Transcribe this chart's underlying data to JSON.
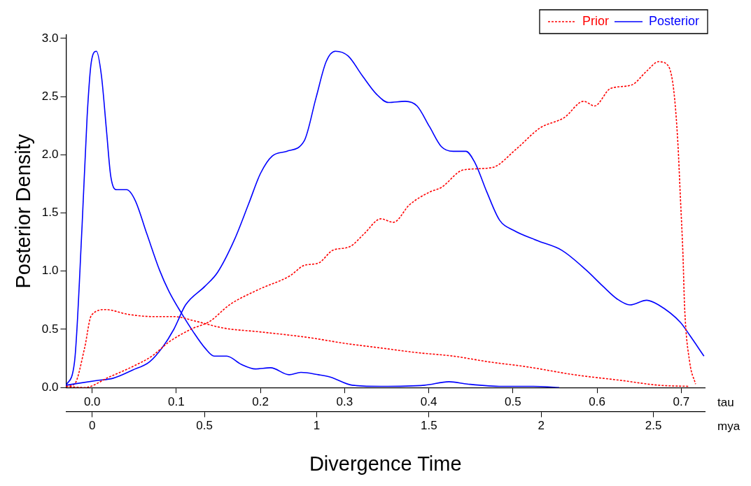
{
  "chart_data": {
    "type": "line",
    "ylabel": "Posterior Density",
    "xlabel": "tau",
    "x2label": "mya",
    "annotations": [
      "Divergence Time"
    ],
    "xlim": [
      -0.031,
      0.728
    ],
    "xticks": [
      {
        "value": 0,
        "label": "0.0"
      },
      0.1,
      0.2,
      0.3,
      0.4,
      0.5,
      0.6,
      0.7
    ],
    "x2lim": [
      -0.116,
      2.729
    ],
    "x2ticks": [
      0,
      0.5,
      1,
      1.5,
      2,
      2.5
    ],
    "ylim": [
      0,
      3.03
    ],
    "yticks": [
      {
        "value": 0,
        "label": "0.0"
      },
      {
        "value": 0.5,
        "label": "0.5"
      },
      {
        "value": 1,
        "label": "1.0"
      },
      {
        "value": 1.5,
        "label": "1.5"
      },
      {
        "value": 2,
        "label": "2.0"
      },
      {
        "value": 2.5,
        "label": "2.5"
      },
      {
        "value": 3,
        "label": "3.0"
      }
    ],
    "grid": false,
    "legend": "top right",
    "series": [
      {
        "name": "Prior",
        "color": "#ff0000",
        "line_style": "dashed",
        "x": [
          -0.031,
          -0.009,
          0.02,
          0.048,
          0.071,
          0.091,
          0.117,
          0.14,
          0.163,
          0.197,
          0.235,
          0.252,
          0.269,
          0.286,
          0.306,
          0.323,
          0.343,
          0.358,
          0.377,
          0.401,
          0.415,
          0.441,
          0.475,
          0.504,
          0.532,
          0.561,
          0.584,
          0.597,
          0.616,
          0.641,
          0.659,
          0.673,
          0.684,
          0.691,
          0.696,
          0.699,
          0.702,
          0.704,
          0.71,
          0.717
        ],
        "values": [
          0.01,
          0.0,
          0.09,
          0.18,
          0.27,
          0.39,
          0.5,
          0.57,
          0.71,
          0.84,
          0.96,
          1.05,
          1.07,
          1.18,
          1.21,
          1.32,
          1.45,
          1.42,
          1.57,
          1.68,
          1.72,
          1.87,
          1.89,
          2.05,
          2.23,
          2.32,
          2.46,
          2.42,
          2.57,
          2.6,
          2.72,
          2.8,
          2.77,
          2.56,
          2.1,
          1.63,
          1.15,
          0.69,
          0.22,
          0.03
        ]
      },
      {
        "name": "Posterior",
        "color": "#0000ff",
        "line_style": "solid",
        "x": [
          -0.031,
          0.005,
          0.025,
          0.048,
          0.068,
          0.083,
          0.097,
          0.111,
          0.134,
          0.149,
          0.169,
          0.186,
          0.2,
          0.214,
          0.231,
          0.252,
          0.266,
          0.278,
          0.289,
          0.304,
          0.321,
          0.338,
          0.352,
          0.372,
          0.386,
          0.401,
          0.415,
          0.429,
          0.444,
          0.455,
          0.469,
          0.484,
          0.501,
          0.53,
          0.558,
          0.587,
          0.607,
          0.624,
          0.639,
          0.659,
          0.673,
          0.699,
          0.71,
          0.727
        ],
        "values": [
          0.02,
          0.06,
          0.08,
          0.15,
          0.22,
          0.34,
          0.5,
          0.71,
          0.87,
          0.99,
          1.27,
          1.58,
          1.84,
          1.99,
          2.03,
          2.12,
          2.49,
          2.8,
          2.89,
          2.85,
          2.68,
          2.52,
          2.45,
          2.46,
          2.42,
          2.24,
          2.07,
          2.03,
          2.03,
          1.93,
          1.68,
          1.44,
          1.35,
          1.26,
          1.18,
          1.01,
          0.87,
          0.76,
          0.71,
          0.75,
          0.71,
          0.56,
          0.45,
          0.27
        ]
      },
      {
        "color": "#ff0000",
        "line_style": "dashed",
        "x": [
          -0.031,
          -0.021,
          -0.009,
          -0.001,
          0.016,
          0.042,
          0.071,
          0.097,
          0.123,
          0.157,
          0.197,
          0.235,
          0.257,
          0.3,
          0.343,
          0.386,
          0.429,
          0.472,
          0.515,
          0.573,
          0.63,
          0.673,
          0.71
        ],
        "values": [
          0.01,
          0.03,
          0.34,
          0.62,
          0.67,
          0.63,
          0.61,
          0.61,
          0.57,
          0.51,
          0.48,
          0.45,
          0.43,
          0.38,
          0.34,
          0.3,
          0.27,
          0.22,
          0.18,
          0.11,
          0.06,
          0.02,
          0.01
        ]
      },
      {
        "color": "#0000ff",
        "line_style": "solid",
        "x": [
          -0.031,
          -0.021,
          -0.012,
          -0.006,
          -0.001,
          0.005,
          0.011,
          0.017,
          0.022,
          0.029,
          0.041,
          0.051,
          0.065,
          0.08,
          0.091,
          0.106,
          0.12,
          0.134,
          0.145,
          0.16,
          0.177,
          0.194,
          0.212,
          0.234,
          0.248,
          0.269,
          0.283,
          0.309,
          0.343,
          0.395,
          0.424,
          0.446,
          0.487,
          0.524,
          0.555
        ],
        "values": [
          0.02,
          0.22,
          1.39,
          2.33,
          2.8,
          2.89,
          2.68,
          2.21,
          1.82,
          1.7,
          1.7,
          1.61,
          1.32,
          1.01,
          0.83,
          0.64,
          0.48,
          0.34,
          0.27,
          0.27,
          0.2,
          0.16,
          0.17,
          0.11,
          0.13,
          0.11,
          0.09,
          0.02,
          0.01,
          0.02,
          0.05,
          0.03,
          0.01,
          0.01,
          0.0
        ]
      }
    ]
  }
}
